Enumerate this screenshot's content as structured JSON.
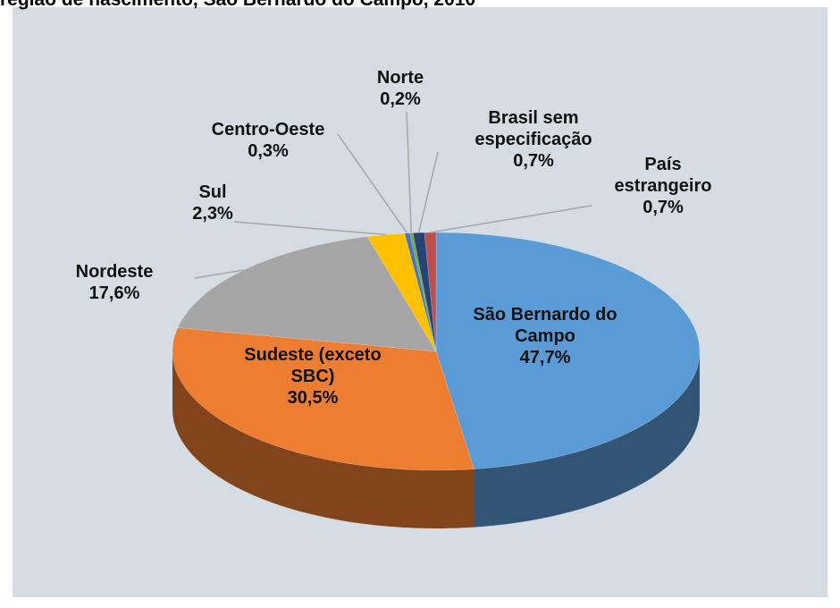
{
  "chart_data": {
    "type": "pie",
    "title": "região de nascimento, São Bernardo do Campo, 2010",
    "categories": [
      "São Bernardo do Campo",
      "Sudeste (exceto SBC)",
      "Nordeste",
      "Sul",
      "Centro-Oeste",
      "Norte",
      "Brasil sem especificação",
      "País estrangeiro"
    ],
    "values": [
      47.7,
      30.5,
      17.6,
      2.3,
      0.3,
      0.2,
      0.7,
      0.7
    ],
    "value_labels": [
      "47,7%",
      "30,5%",
      "17,6%",
      "2,3%",
      "0,3%",
      "0,2%",
      "0,7%",
      "0,7%"
    ],
    "colors": [
      "#5b9bd5",
      "#ed7d31",
      "#a5a5a5",
      "#ffc000",
      "#4472c4",
      "#70ad47",
      "#264478",
      "#c0504d"
    ]
  }
}
